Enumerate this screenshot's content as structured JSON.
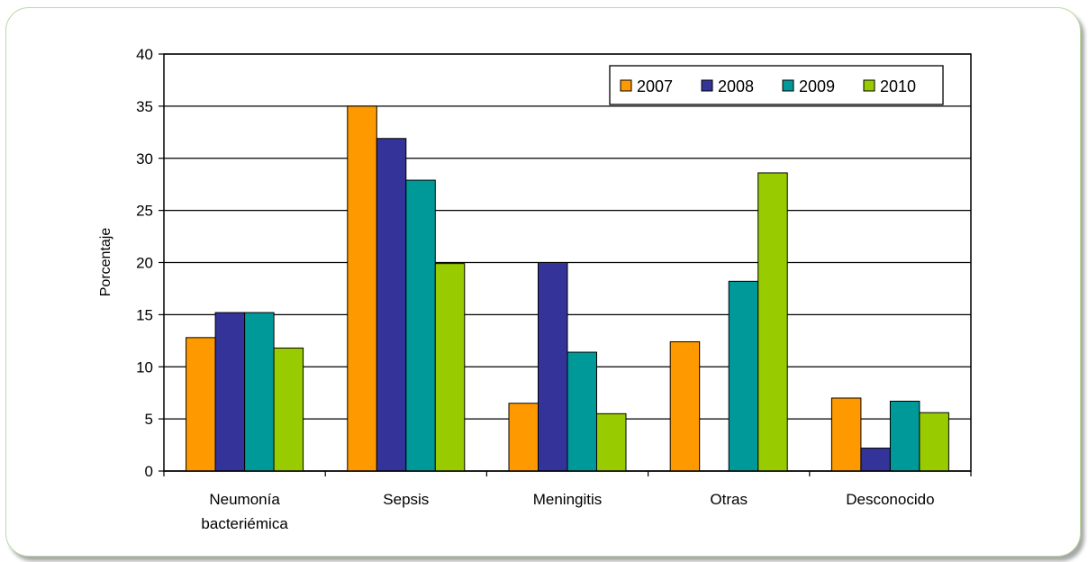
{
  "chart_data": {
    "type": "bar",
    "categories": [
      [
        "Neumonía",
        "bacteriémica"
      ],
      [
        "Sepsis"
      ],
      [
        "Meningitis"
      ],
      [
        "Otras"
      ],
      [
        "Desconocido"
      ]
    ],
    "series": [
      {
        "name": "2007",
        "color": "#FF9900",
        "values": [
          12.8,
          35.0,
          6.5,
          12.4,
          7.0
        ]
      },
      {
        "name": "2008",
        "color": "#333399",
        "values": [
          15.2,
          31.9,
          20.0,
          0,
          2.2
        ]
      },
      {
        "name": "2009",
        "color": "#009999",
        "values": [
          15.2,
          27.9,
          11.4,
          18.2,
          6.7
        ]
      },
      {
        "name": "2010",
        "color": "#99CC00",
        "values": [
          11.8,
          19.9,
          5.5,
          28.6,
          5.6
        ]
      }
    ],
    "ylabel": "Porcentaje",
    "ylim": [
      0,
      40
    ],
    "yticks": [
      0,
      5,
      10,
      15,
      20,
      25,
      30,
      35,
      40
    ],
    "grid": true,
    "legend_position": "top-right"
  }
}
